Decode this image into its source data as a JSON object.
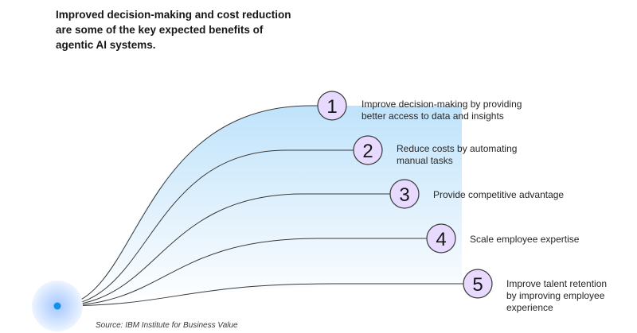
{
  "heading": {
    "lines": [
      "Improved decision-making and cost reduction",
      "are some of the key expected benefits of",
      "agentic AI systems."
    ]
  },
  "benefits": [
    {
      "number": "1",
      "lines": [
        "Improve decision-making by providing",
        "better access to data and insights"
      ]
    },
    {
      "number": "2",
      "lines": [
        "Reduce costs by automating",
        "manual tasks"
      ]
    },
    {
      "number": "3",
      "lines": [
        "Provide competitive advantage"
      ]
    },
    {
      "number": "4",
      "lines": [
        "Scale employee expertise"
      ]
    },
    {
      "number": "5",
      "lines": [
        "Improve talent retention",
        "by improving employee",
        "experience"
      ]
    }
  ],
  "source": "Source: IBM Institute for Business Value",
  "colors": {
    "circle_fill": "#e8daff",
    "circle_stroke": "#393939",
    "line": "#393939",
    "origin_dot": "#1192e8",
    "origin_halo": "#d0e2ff",
    "gradient_top": "#bfe3fb",
    "gradient_bottom": "#ffffff"
  }
}
